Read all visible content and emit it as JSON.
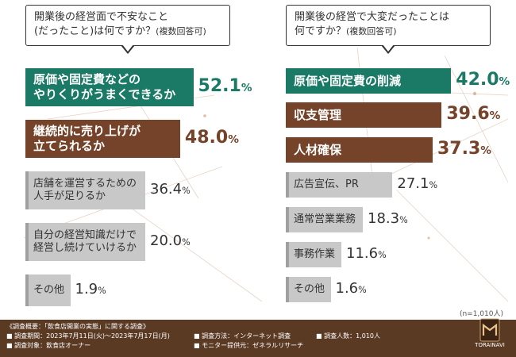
{
  "left_panel": {
    "question_line1": "開業後の経営面で不安なこと",
    "question_line2": "(だったこと)は何ですか？",
    "question_note": "(複数回答可)"
  },
  "right_panel": {
    "question_line1": "開業後の経営で大変だったことは",
    "question_line2": "何ですか？",
    "question_note": "(複数回答可)"
  },
  "colors": {
    "top1": "#1a7a66",
    "top2": "#74432a",
    "other": "#c8c8c8",
    "stripe_other": "#a0a0a0",
    "pct_top1": "#1a7a66",
    "pct_top2": "#74432a",
    "pct_other": "#333333",
    "footer_bg": "#5b3a24"
  },
  "chart_data": [
    {
      "type": "bar",
      "orientation": "horizontal",
      "title": "開業後の経営面で不安なこと(だったこと)は何ですか？(複数回答可)",
      "unit": "%",
      "categories": [
        "原価や固定費などのやりくりがうまくできるか",
        "継続的に売り上げが立てられるか",
        "店舗を運営するための人手が足りるか",
        "自分の経営知識だけで経営し続けていけるか",
        "その他"
      ],
      "label_lines": [
        [
          "原価や固定費などの",
          "やりくりがうまくできるか"
        ],
        [
          "継続的に売り上げが",
          "立てられるか"
        ],
        [
          "店舗を運営するための",
          "人手が足りるか"
        ],
        [
          "自分の経営知識だけで",
          "経営し続けていけるか"
        ],
        [
          "その他"
        ]
      ],
      "values": [
        52.1,
        48.0,
        36.4,
        20.0,
        1.9
      ],
      "value_labels": [
        {
          "num": "52.1",
          "unit": "%"
        },
        {
          "num": "48.0",
          "unit": "%"
        },
        {
          "num": "36.4",
          "unit": "%"
        },
        {
          "num": "20.0",
          "unit": "%"
        },
        {
          "num": "1.9",
          "unit": "%"
        }
      ]
    },
    {
      "type": "bar",
      "orientation": "horizontal",
      "title": "開業後の経営で大変だったことは何ですか？(複数回答可)",
      "unit": "%",
      "categories": [
        "原価や固定費の削減",
        "収支管理",
        "人材確保",
        "広告宣伝、PR",
        "通常営業業務",
        "事務作業",
        "その他"
      ],
      "label_lines": [
        [
          "原価や固定費の削減"
        ],
        [
          "収支管理"
        ],
        [
          "人材確保"
        ],
        [
          "広告宣伝、PR"
        ],
        [
          "通常営業業務"
        ],
        [
          "事務作業"
        ],
        [
          "その他"
        ]
      ],
      "values": [
        42.0,
        39.6,
        37.3,
        27.1,
        18.3,
        11.6,
        1.6
      ],
      "value_labels": [
        {
          "num": "42.0",
          "unit": "%"
        },
        {
          "num": "39.6",
          "unit": "%"
        },
        {
          "num": "37.3",
          "unit": "%"
        },
        {
          "num": "27.1",
          "unit": "%"
        },
        {
          "num": "18.3",
          "unit": "%"
        },
        {
          "num": "11.6",
          "unit": "%"
        },
        {
          "num": "1.6",
          "unit": "%"
        }
      ]
    }
  ],
  "sample_note": "(n=1,010人)",
  "footer": {
    "survey_title": "《調査概要：「飲食店開業の実態」に関する調査》",
    "period": "■ 調査期間：2023年7月11日(火)〜2023年7月17日(月)",
    "target": "■ 調査対象：飲食店オーナー",
    "method": "■ 調査方法：インターネット調査",
    "provider": "■ モニター提供元：ゼネラルリサーチ",
    "count": "■ 調査人数：1,010人"
  },
  "logo": {
    "icon": "torainavi-logo-icon",
    "text": "TORAINAVI"
  }
}
